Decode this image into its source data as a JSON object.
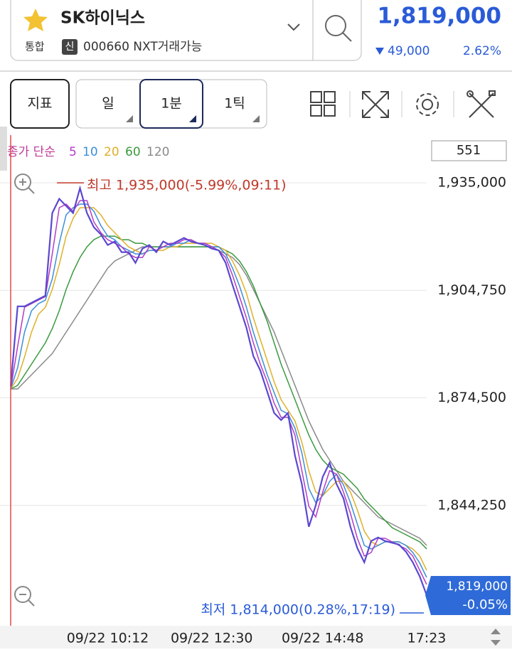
{
  "header": {
    "stock_name": "SK하이닉스",
    "market": "통합",
    "badge": "신",
    "code": "000660 NXT거래가능",
    "price": "1,819,000",
    "change": "49,000",
    "change_rate": "2.62%"
  },
  "toolbar": {
    "indicator": "지표",
    "periods": [
      "일",
      "1분",
      "1틱"
    ],
    "count": "551"
  },
  "chart_data": {
    "type": "line",
    "legend_title": "종가 단순",
    "color": "#5a48d0",
    "categories": [
      null,
      null,
      null,
      null,
      null,
      null,
      null,
      null,
      null,
      null,
      null,
      null,
      null,
      null,
      "09/22 10:12",
      null,
      null,
      null,
      null,
      null,
      null,
      null,
      null,
      null,
      null,
      null,
      null,
      null,
      null,
      "09/22 12:30",
      null,
      null,
      null,
      null,
      null,
      null,
      null,
      null,
      null,
      null,
      null,
      null,
      null,
      null,
      null,
      "09/22 14:48",
      null,
      null,
      null,
      null,
      null,
      null,
      null,
      null,
      null,
      null,
      null,
      null,
      null,
      null,
      "17:23"
    ],
    "values": [
      1877750,
      1900250,
      1900250,
      1901250,
      1902250,
      1903250,
      1926500,
      1930500,
      1928500,
      1926500,
      1933500,
      1926500,
      1922500,
      1920500,
      1917500,
      1918500,
      1915500,
      1915500,
      1912500,
      1916500,
      1917500,
      1915500,
      1918500,
      1917500,
      1918500,
      1919500,
      1918500,
      1918000,
      1917500,
      1916500,
      1916000,
      1912500,
      1906250,
      1900250,
      1894250,
      1886250,
      1882250,
      1876250,
      1870250,
      1868250,
      1870250,
      1858250,
      1850250,
      1838250,
      1844250,
      1852250,
      1856250,
      1850250,
      1846250,
      1838250,
      1832250,
      1828250,
      1834250,
      1835250,
      1834250,
      1833750,
      1833250,
      1831250,
      1828250,
      1824250,
      1819000
    ],
    "series": [
      {
        "name": "5",
        "color": "#b43cc8",
        "values": [
          1877000,
          1889000,
          1900000,
          1901000,
          1902000,
          1903000,
          1915000,
          1928000,
          1929000,
          1927000,
          1930000,
          1930000,
          1924000,
          1921000,
          1919000,
          1918000,
          1917000,
          1915000,
          1914000,
          1914000,
          1917000,
          1916000,
          1917000,
          1918000,
          1918000,
          1919000,
          1919000,
          1918000,
          1918000,
          1917000,
          1916000,
          1914000,
          1909000,
          1903000,
          1897000,
          1890000,
          1884000,
          1879000,
          1873000,
          1869000,
          1869000,
          1864000,
          1854000,
          1844000,
          1841000,
          1848000,
          1854000,
          1853000,
          1848000,
          1842000,
          1835000,
          1830000,
          1831000,
          1835000,
          1835000,
          1834000,
          1833000,
          1832000,
          1830000,
          1826000,
          1822000
        ]
      },
      {
        "name": "10",
        "color": "#3c8fd6",
        "values": [
          1877000,
          1883000,
          1893000,
          1899000,
          1901000,
          1902000,
          1908000,
          1918000,
          1926000,
          1928000,
          1929000,
          1929000,
          1927000,
          1923000,
          1920000,
          1919000,
          1917000,
          1916000,
          1915000,
          1915000,
          1916000,
          1916000,
          1917000,
          1917000,
          1918000,
          1918000,
          1919000,
          1918000,
          1918000,
          1917000,
          1917000,
          1915000,
          1911000,
          1906000,
          1900000,
          1893000,
          1887000,
          1881000,
          1876000,
          1871000,
          1870000,
          1866000,
          1859000,
          1849000,
          1845000,
          1847000,
          1851000,
          1853000,
          1850000,
          1845000,
          1839000,
          1833000,
          1832000,
          1833000,
          1834000,
          1834000,
          1834000,
          1833000,
          1831000,
          1828000,
          1824000
        ]
      },
      {
        "name": "20",
        "color": "#e0b02a",
        "values": [
          1877000,
          1880000,
          1886000,
          1893000,
          1898000,
          1900000,
          1905000,
          1912000,
          1920000,
          1925000,
          1928000,
          1928000,
          1928000,
          1926000,
          1923000,
          1921000,
          1919000,
          1917000,
          1916000,
          1915000,
          1916000,
          1916000,
          1916000,
          1917000,
          1917000,
          1918000,
          1918000,
          1918000,
          1918000,
          1918000,
          1917000,
          1916000,
          1913000,
          1909000,
          1904000,
          1897000,
          1891000,
          1885000,
          1879000,
          1874000,
          1871000,
          1868000,
          1862000,
          1854000,
          1848000,
          1847000,
          1849000,
          1851000,
          1851000,
          1848000,
          1843000,
          1837000,
          1834000,
          1833000,
          1834000,
          1834000,
          1834000,
          1833000,
          1832000,
          1830000,
          1826000
        ]
      },
      {
        "name": "60",
        "color": "#3a9a3e",
        "values": [
          1877000,
          1878000,
          1881000,
          1884000,
          1887000,
          1890000,
          1894000,
          1899000,
          1905000,
          1910000,
          1914000,
          1917000,
          1919000,
          1920000,
          1920000,
          1920000,
          1919000,
          1919000,
          1918000,
          1918000,
          1917000,
          1917000,
          1917000,
          1917000,
          1917000,
          1917000,
          1917000,
          1917000,
          1917000,
          1917000,
          1917000,
          1916000,
          1915000,
          1913000,
          1910000,
          1906000,
          1901000,
          1896000,
          1890000,
          1884000,
          1879000,
          1874000,
          1869000,
          1864000,
          1860000,
          1857000,
          1855000,
          1854000,
          1853000,
          1851000,
          1849000,
          1846000,
          1844000,
          1842000,
          1840000,
          1838000,
          1837000,
          1836000,
          1835000,
          1834000,
          1832000
        ]
      },
      {
        "name": "120",
        "color": "#8a8a8a",
        "values": [
          1877000,
          1877000,
          1879000,
          1881000,
          1883000,
          1885000,
          1887000,
          1890000,
          1893000,
          1896000,
          1899000,
          1902000,
          1905000,
          1908000,
          1911000,
          1913000,
          1914000,
          1915000,
          1916000,
          1917000,
          1917000,
          1917000,
          1917000,
          1917000,
          1917000,
          1917000,
          1917000,
          1917000,
          1917000,
          1917000,
          1916000,
          1915000,
          1914000,
          1912000,
          1909000,
          1905000,
          1901000,
          1897000,
          1893000,
          1888000,
          1883000,
          1878000,
          1873000,
          1868000,
          1864000,
          1860000,
          1857000,
          1854000,
          1851000,
          1849000,
          1847000,
          1845000,
          1843000,
          1841000,
          1840000,
          1839000,
          1838000,
          1837000,
          1836000,
          1835000,
          1833000
        ]
      }
    ],
    "ylim": [
      1810400,
      1948420
    ],
    "yticks": [
      {
        "value": 1935000,
        "label": "1,935,000"
      },
      {
        "value": 1904750,
        "label": "1,904,750"
      },
      {
        "value": 1874500,
        "label": "1,874,500"
      },
      {
        "value": 1844250,
        "label": "1,844,250"
      }
    ],
    "grid": true,
    "high": {
      "value": 1935000,
      "label": "최고 1,935,000(-5.99%,09:11)"
    },
    "low": {
      "value": 1814000,
      "label": "최저 1,814,000(0.28%,17:19)"
    },
    "last": {
      "value": 1819000,
      "label": "1,819,000",
      "change": "-0.05%"
    }
  }
}
